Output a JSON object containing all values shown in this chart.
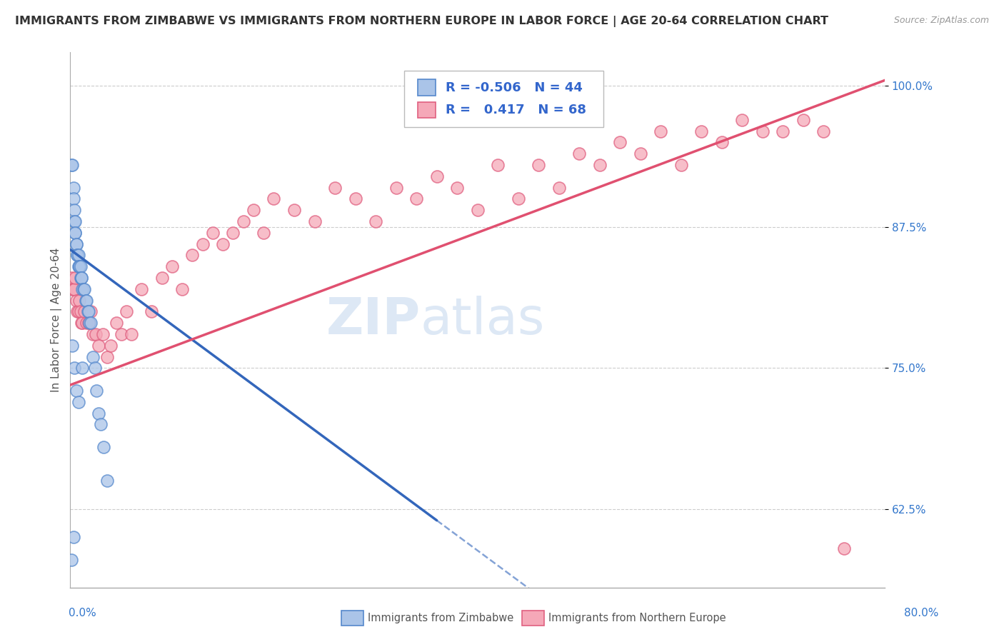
{
  "title": "IMMIGRANTS FROM ZIMBABWE VS IMMIGRANTS FROM NORTHERN EUROPE IN LABOR FORCE | AGE 20-64 CORRELATION CHART",
  "source": "Source: ZipAtlas.com",
  "xlabel_blue": "Immigrants from Zimbabwe",
  "xlabel_pink": "Immigrants from Northern Europe",
  "ylabel": "In Labor Force | Age 20-64",
  "R_blue": -0.506,
  "N_blue": 44,
  "R_pink": 0.417,
  "N_pink": 68,
  "color_blue_fill": "#aac4e8",
  "color_pink_fill": "#f5a8b8",
  "color_blue_edge": "#5588cc",
  "color_pink_edge": "#e06080",
  "color_blue_line": "#3366bb",
  "color_pink_line": "#e05070",
  "xlim": [
    0.0,
    0.8
  ],
  "ylim": [
    0.555,
    1.03
  ],
  "yticks": [
    0.625,
    0.75,
    0.875,
    1.0
  ],
  "ytick_labels": [
    "62.5%",
    "75.0%",
    "87.5%",
    "100.0%"
  ],
  "xtick_labels": [
    "0.0%",
    "80.0%"
  ],
  "xtick_vals": [
    0.0,
    0.8
  ],
  "watermark_zip": "ZIP",
  "watermark_atlas": "atlas",
  "background_color": "#FFFFFF",
  "grid_color": "#CCCCCC",
  "title_fontsize": 11.5,
  "axis_label_fontsize": 11,
  "tick_fontsize": 11,
  "legend_fontsize": 13,
  "watermark_fontsize_zip": 52,
  "watermark_fontsize_atlas": 52,
  "watermark_color": "#dde8f5",
  "blue_scatter_x": [
    0.001,
    0.002,
    0.003,
    0.003,
    0.004,
    0.004,
    0.005,
    0.005,
    0.005,
    0.006,
    0.006,
    0.007,
    0.007,
    0.008,
    0.008,
    0.009,
    0.009,
    0.01,
    0.01,
    0.011,
    0.011,
    0.012,
    0.013,
    0.014,
    0.015,
    0.016,
    0.017,
    0.018,
    0.019,
    0.02,
    0.022,
    0.024,
    0.026,
    0.028,
    0.03,
    0.033,
    0.036,
    0.002,
    0.004,
    0.006,
    0.008,
    0.012,
    0.001,
    0.003
  ],
  "blue_scatter_y": [
    0.93,
    0.93,
    0.91,
    0.9,
    0.89,
    0.88,
    0.88,
    0.87,
    0.87,
    0.86,
    0.86,
    0.85,
    0.85,
    0.85,
    0.84,
    0.84,
    0.84,
    0.84,
    0.83,
    0.83,
    0.83,
    0.82,
    0.82,
    0.82,
    0.81,
    0.81,
    0.8,
    0.8,
    0.79,
    0.79,
    0.76,
    0.75,
    0.73,
    0.71,
    0.7,
    0.68,
    0.65,
    0.77,
    0.75,
    0.73,
    0.72,
    0.75,
    0.58,
    0.6
  ],
  "pink_scatter_x": [
    0.001,
    0.002,
    0.003,
    0.004,
    0.005,
    0.006,
    0.007,
    0.008,
    0.009,
    0.01,
    0.011,
    0.012,
    0.014,
    0.016,
    0.018,
    0.02,
    0.022,
    0.025,
    0.028,
    0.032,
    0.036,
    0.04,
    0.045,
    0.05,
    0.055,
    0.06,
    0.07,
    0.08,
    0.09,
    0.1,
    0.11,
    0.12,
    0.13,
    0.14,
    0.15,
    0.16,
    0.17,
    0.18,
    0.19,
    0.2,
    0.22,
    0.24,
    0.26,
    0.28,
    0.3,
    0.32,
    0.34,
    0.36,
    0.38,
    0.4,
    0.42,
    0.44,
    0.46,
    0.48,
    0.5,
    0.52,
    0.54,
    0.56,
    0.58,
    0.6,
    0.62,
    0.64,
    0.66,
    0.68,
    0.7,
    0.72,
    0.74,
    0.76
  ],
  "pink_scatter_y": [
    0.83,
    0.82,
    0.82,
    0.82,
    0.83,
    0.81,
    0.8,
    0.8,
    0.81,
    0.8,
    0.79,
    0.79,
    0.8,
    0.79,
    0.79,
    0.8,
    0.78,
    0.78,
    0.77,
    0.78,
    0.76,
    0.77,
    0.79,
    0.78,
    0.8,
    0.78,
    0.82,
    0.8,
    0.83,
    0.84,
    0.82,
    0.85,
    0.86,
    0.87,
    0.86,
    0.87,
    0.88,
    0.89,
    0.87,
    0.9,
    0.89,
    0.88,
    0.91,
    0.9,
    0.88,
    0.91,
    0.9,
    0.92,
    0.91,
    0.89,
    0.93,
    0.9,
    0.93,
    0.91,
    0.94,
    0.93,
    0.95,
    0.94,
    0.96,
    0.93,
    0.96,
    0.95,
    0.97,
    0.96,
    0.96,
    0.97,
    0.96,
    0.59
  ],
  "blue_line_x0": 0.0,
  "blue_line_y0": 0.855,
  "blue_line_x1": 0.36,
  "blue_line_y1": 0.615,
  "blue_line_solid_end": 0.36,
  "pink_line_x0": 0.0,
  "pink_line_y0": 0.735,
  "pink_line_x1": 0.8,
  "pink_line_y1": 1.005
}
